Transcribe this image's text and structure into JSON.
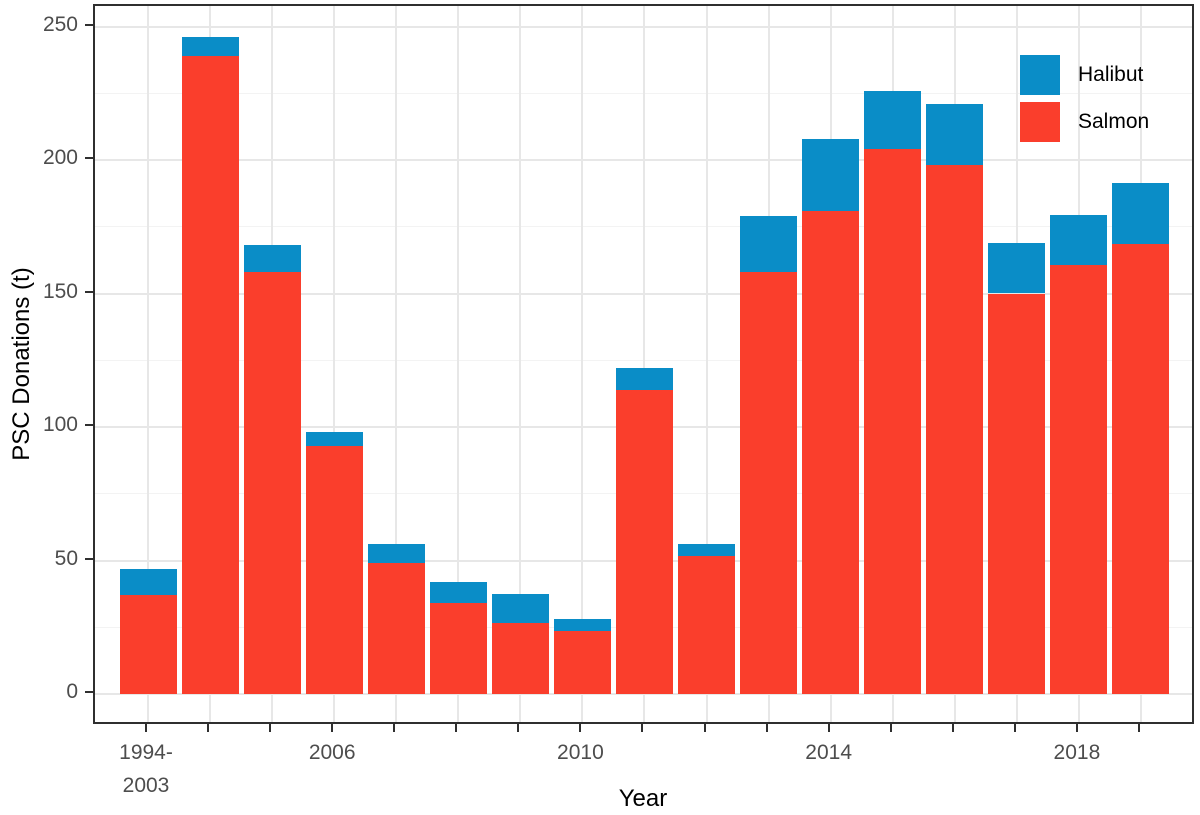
{
  "chart_data": {
    "type": "bar",
    "stacked": true,
    "title": "",
    "xlabel": "Year",
    "ylabel": "PSC Donations (t)",
    "categories": [
      "1994-2003",
      "2004",
      "2005",
      "2006",
      "2007",
      "2008",
      "2009",
      "2010",
      "2011",
      "2012",
      "2013",
      "2014",
      "2015",
      "2016",
      "2017",
      "2018",
      "2019"
    ],
    "series": [
      {
        "name": "Halibut",
        "color": "#0a8dc7",
        "values": [
          10,
          7,
          10,
          5,
          7,
          8,
          11,
          4.5,
          8,
          4.5,
          21,
          27,
          22,
          23,
          19,
          19,
          23
        ]
      },
      {
        "name": "Salmon",
        "color": "#fa3e2c",
        "values": [
          37,
          239,
          158,
          93,
          49,
          34,
          26.5,
          23.5,
          114,
          51.5,
          158,
          181,
          204,
          198,
          150,
          160.5,
          168.5
        ]
      }
    ],
    "stack_totals": [
      47,
      246,
      168,
      98,
      56,
      42,
      37.5,
      28,
      122,
      56,
      179,
      208,
      226,
      221,
      169,
      179.5,
      191.5
    ],
    "y_ticks": [
      0,
      50,
      100,
      150,
      200,
      250
    ],
    "y_minor_ticks": [
      25,
      75,
      125,
      175,
      225
    ],
    "ylim": [
      -12,
      258
    ],
    "x_tick_labels": [
      {
        "index": 0,
        "lines": [
          "1994-",
          "2003"
        ]
      },
      {
        "index": 3,
        "lines": [
          "2006"
        ]
      },
      {
        "index": 7,
        "lines": [
          "2010"
        ]
      },
      {
        "index": 11,
        "lines": [
          "2014"
        ]
      },
      {
        "index": 15,
        "lines": [
          "2018"
        ]
      }
    ],
    "legend": {
      "position": "top-right",
      "entries": [
        "Halibut",
        "Salmon"
      ]
    },
    "grid": {
      "on": true,
      "major_color": "#e7e7e7",
      "minor_color": "#f3f3f3"
    },
    "axis_style": {
      "border_color": "#2f2f2f",
      "tick_color": "#2f2f2f",
      "tick_text_color": "#4d4d4d",
      "title_color": "#000000"
    }
  }
}
